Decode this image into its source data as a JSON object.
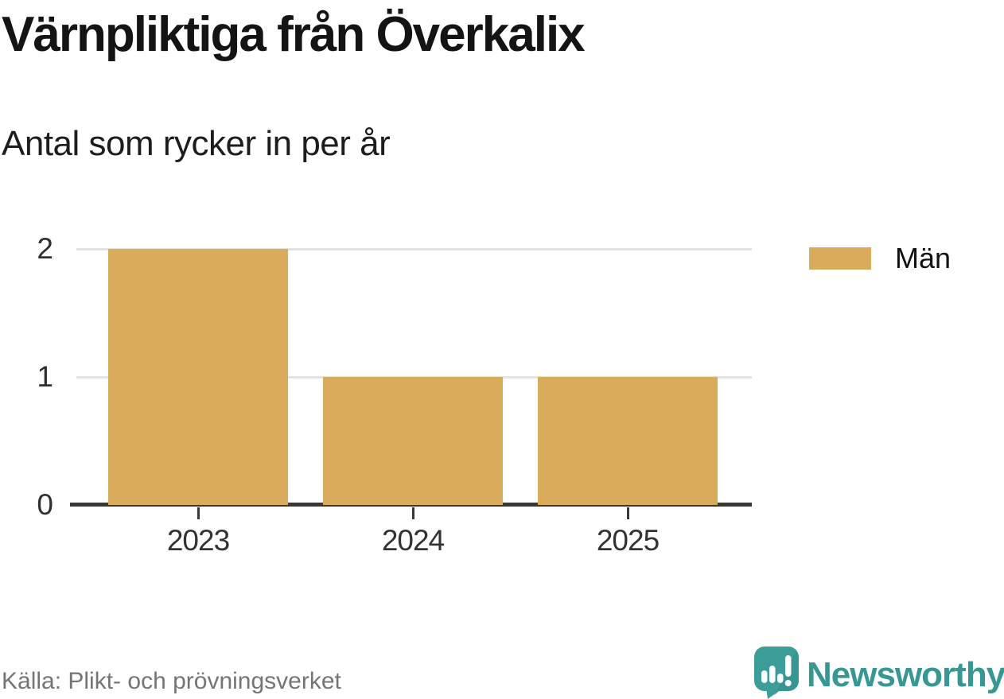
{
  "title": "Värnpliktiga från Överkalix",
  "subtitle": "Antal som rycker in per år",
  "legend": {
    "items": [
      {
        "label": "Män",
        "color": "#D9AB5B"
      }
    ]
  },
  "source": {
    "text": "Källa: Plikt- och prövningsverket"
  },
  "branding": {
    "name": "Newsworthy",
    "icon": "newsworthy-speech-bubble-chart-icon",
    "color": "#379793"
  },
  "colors": {
    "bar": "#D9AB5B",
    "grid": "#E3E3E3",
    "axis": "#383838",
    "brand_teal": "#3C9D99",
    "brand_text": "#379793",
    "source_gray": "#757575"
  },
  "chart_data": {
    "type": "bar",
    "categories": [
      "2023",
      "2024",
      "2025"
    ],
    "series": [
      {
        "name": "Män",
        "values": [
          2,
          1,
          1
        ],
        "color": "#D9AB5B"
      }
    ],
    "title": "Värnpliktiga från Överkalix",
    "subtitle": "Antal som rycker in per år",
    "xlabel": "",
    "ylabel": "",
    "ylim": [
      0,
      2
    ],
    "yticks": [
      0,
      1,
      2
    ],
    "grid": "horizontal",
    "legend_position": "right"
  }
}
